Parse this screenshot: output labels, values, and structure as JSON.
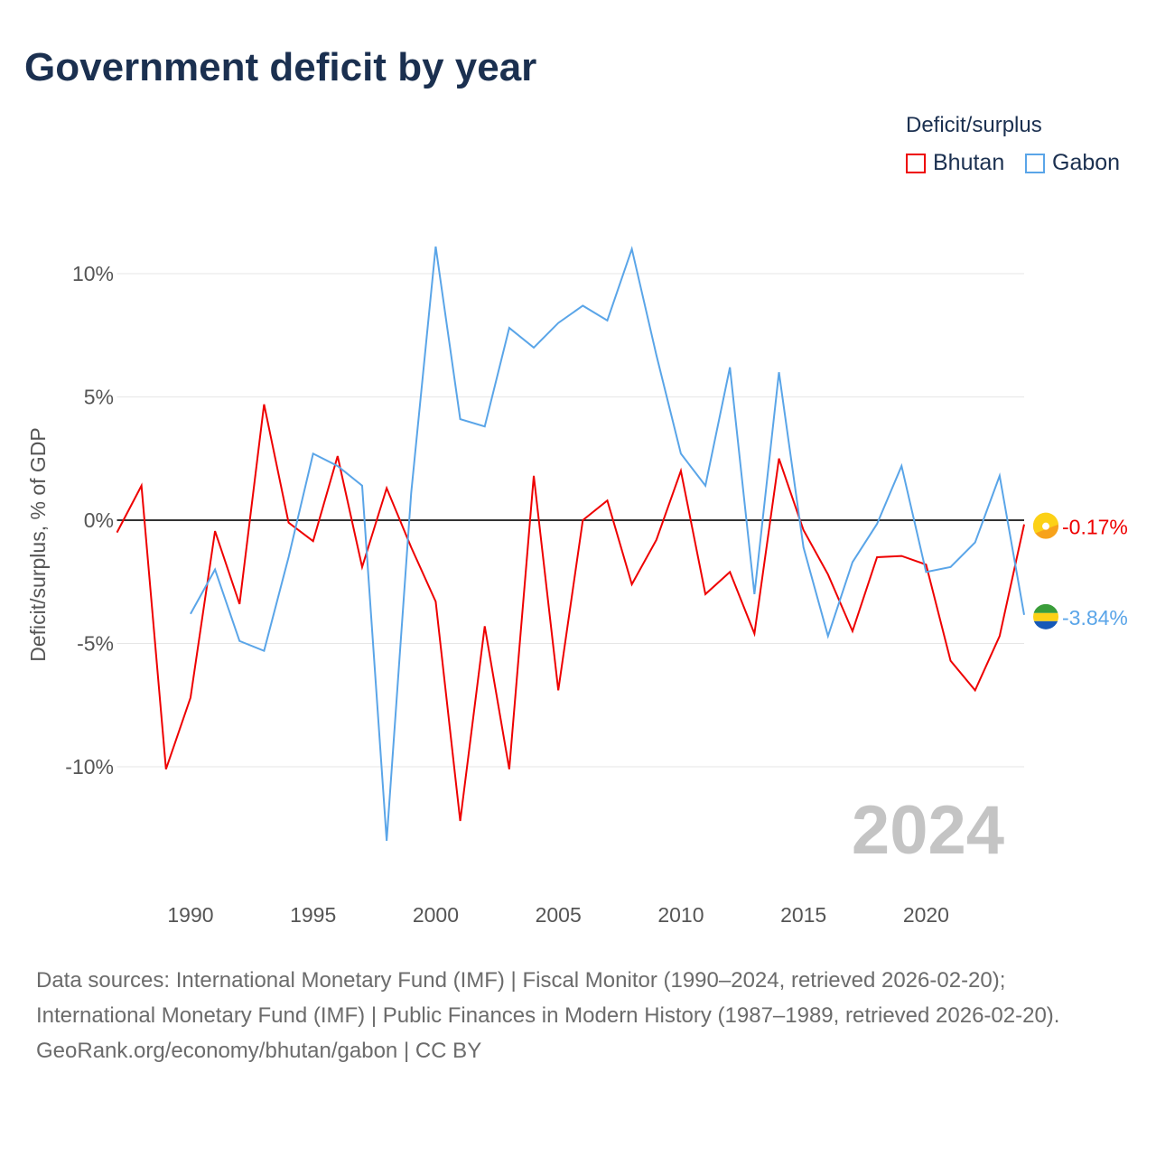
{
  "title": "Government deficit by year",
  "legend": {
    "title": "Deficit/surplus",
    "items": [
      {
        "name": "Bhutan",
        "color": "#ee0000"
      },
      {
        "name": "Gabon",
        "color": "#5aa5e8"
      }
    ]
  },
  "year_label": "2024",
  "sources": {
    "line1": "Data sources: International Monetary Fund (IMF) | Fiscal Monitor (1990–2024, retrieved 2026-02-20); International Monetary Fund (IMF) | Public Finances in Modern History (1987–1989, retrieved 2026-02-20).",
    "line2": "GeoRank.org/economy/bhutan/gabon | CC BY"
  },
  "chart_data": {
    "type": "line",
    "title": "Government deficit by year",
    "xlabel": "",
    "ylabel": "Deficit/surplus, % of GDP",
    "xlim": [
      1987,
      2024
    ],
    "ylim": [
      -13.5,
      11.5
    ],
    "x_ticks": [
      1990,
      1995,
      2000,
      2005,
      2010,
      2015,
      2020
    ],
    "y_ticks": [
      {
        "v": 10,
        "label": "10%"
      },
      {
        "v": 5,
        "label": "5%"
      },
      {
        "v": 0,
        "label": "0%"
      },
      {
        "v": -5,
        "label": "-5%"
      },
      {
        "v": -10,
        "label": "-10%"
      }
    ],
    "series": [
      {
        "name": "Bhutan",
        "color": "#ee0000",
        "end_label": "-0.17%",
        "x": [
          1987,
          1988,
          1989,
          1990,
          1991,
          1992,
          1993,
          1994,
          1995,
          1996,
          1997,
          1998,
          1999,
          2000,
          2001,
          2002,
          2003,
          2004,
          2005,
          2006,
          2007,
          2008,
          2009,
          2010,
          2011,
          2012,
          2013,
          2014,
          2015,
          2016,
          2017,
          2018,
          2019,
          2020,
          2021,
          2022,
          2023,
          2024
        ],
        "values": [
          -0.5,
          1.4,
          -10.1,
          -7.2,
          -0.44,
          -3.4,
          4.7,
          -0.1,
          -0.85,
          2.6,
          -1.9,
          1.3,
          -1.1,
          -3.3,
          -12.2,
          -4.3,
          -10.1,
          1.8,
          -6.9,
          0,
          0.8,
          -2.6,
          -0.8,
          2.0,
          -3.0,
          -2.1,
          -4.6,
          2.5,
          -0.4,
          -2.2,
          -4.5,
          -1.5,
          -1.45,
          -1.8,
          -5.7,
          -6.9,
          -4.7,
          -0.17
        ]
      },
      {
        "name": "Gabon",
        "color": "#5aa5e8",
        "end_label": "-3.84%",
        "x": [
          1990,
          1991,
          1992,
          1993,
          1994,
          1995,
          1996,
          1997,
          1998,
          1999,
          2000,
          2001,
          2002,
          2003,
          2004,
          2005,
          2006,
          2007,
          2008,
          2009,
          2010,
          2011,
          2012,
          2013,
          2014,
          2015,
          2016,
          2017,
          2018,
          2019,
          2020,
          2021,
          2022,
          2023,
          2024
        ],
        "values": [
          -3.8,
          -2.0,
          -4.9,
          -5.3,
          -1.5,
          2.7,
          2.2,
          1.4,
          -13.0,
          1.1,
          11.1,
          4.1,
          3.8,
          7.8,
          7.0,
          8.0,
          8.7,
          8.1,
          11.0,
          6.7,
          2.7,
          1.4,
          6.2,
          -3.0,
          6.0,
          -1.1,
          -4.7,
          -1.7,
          -0.15,
          2.2,
          -2.1,
          -1.9,
          -0.9,
          1.8,
          -3.84
        ]
      }
    ]
  }
}
